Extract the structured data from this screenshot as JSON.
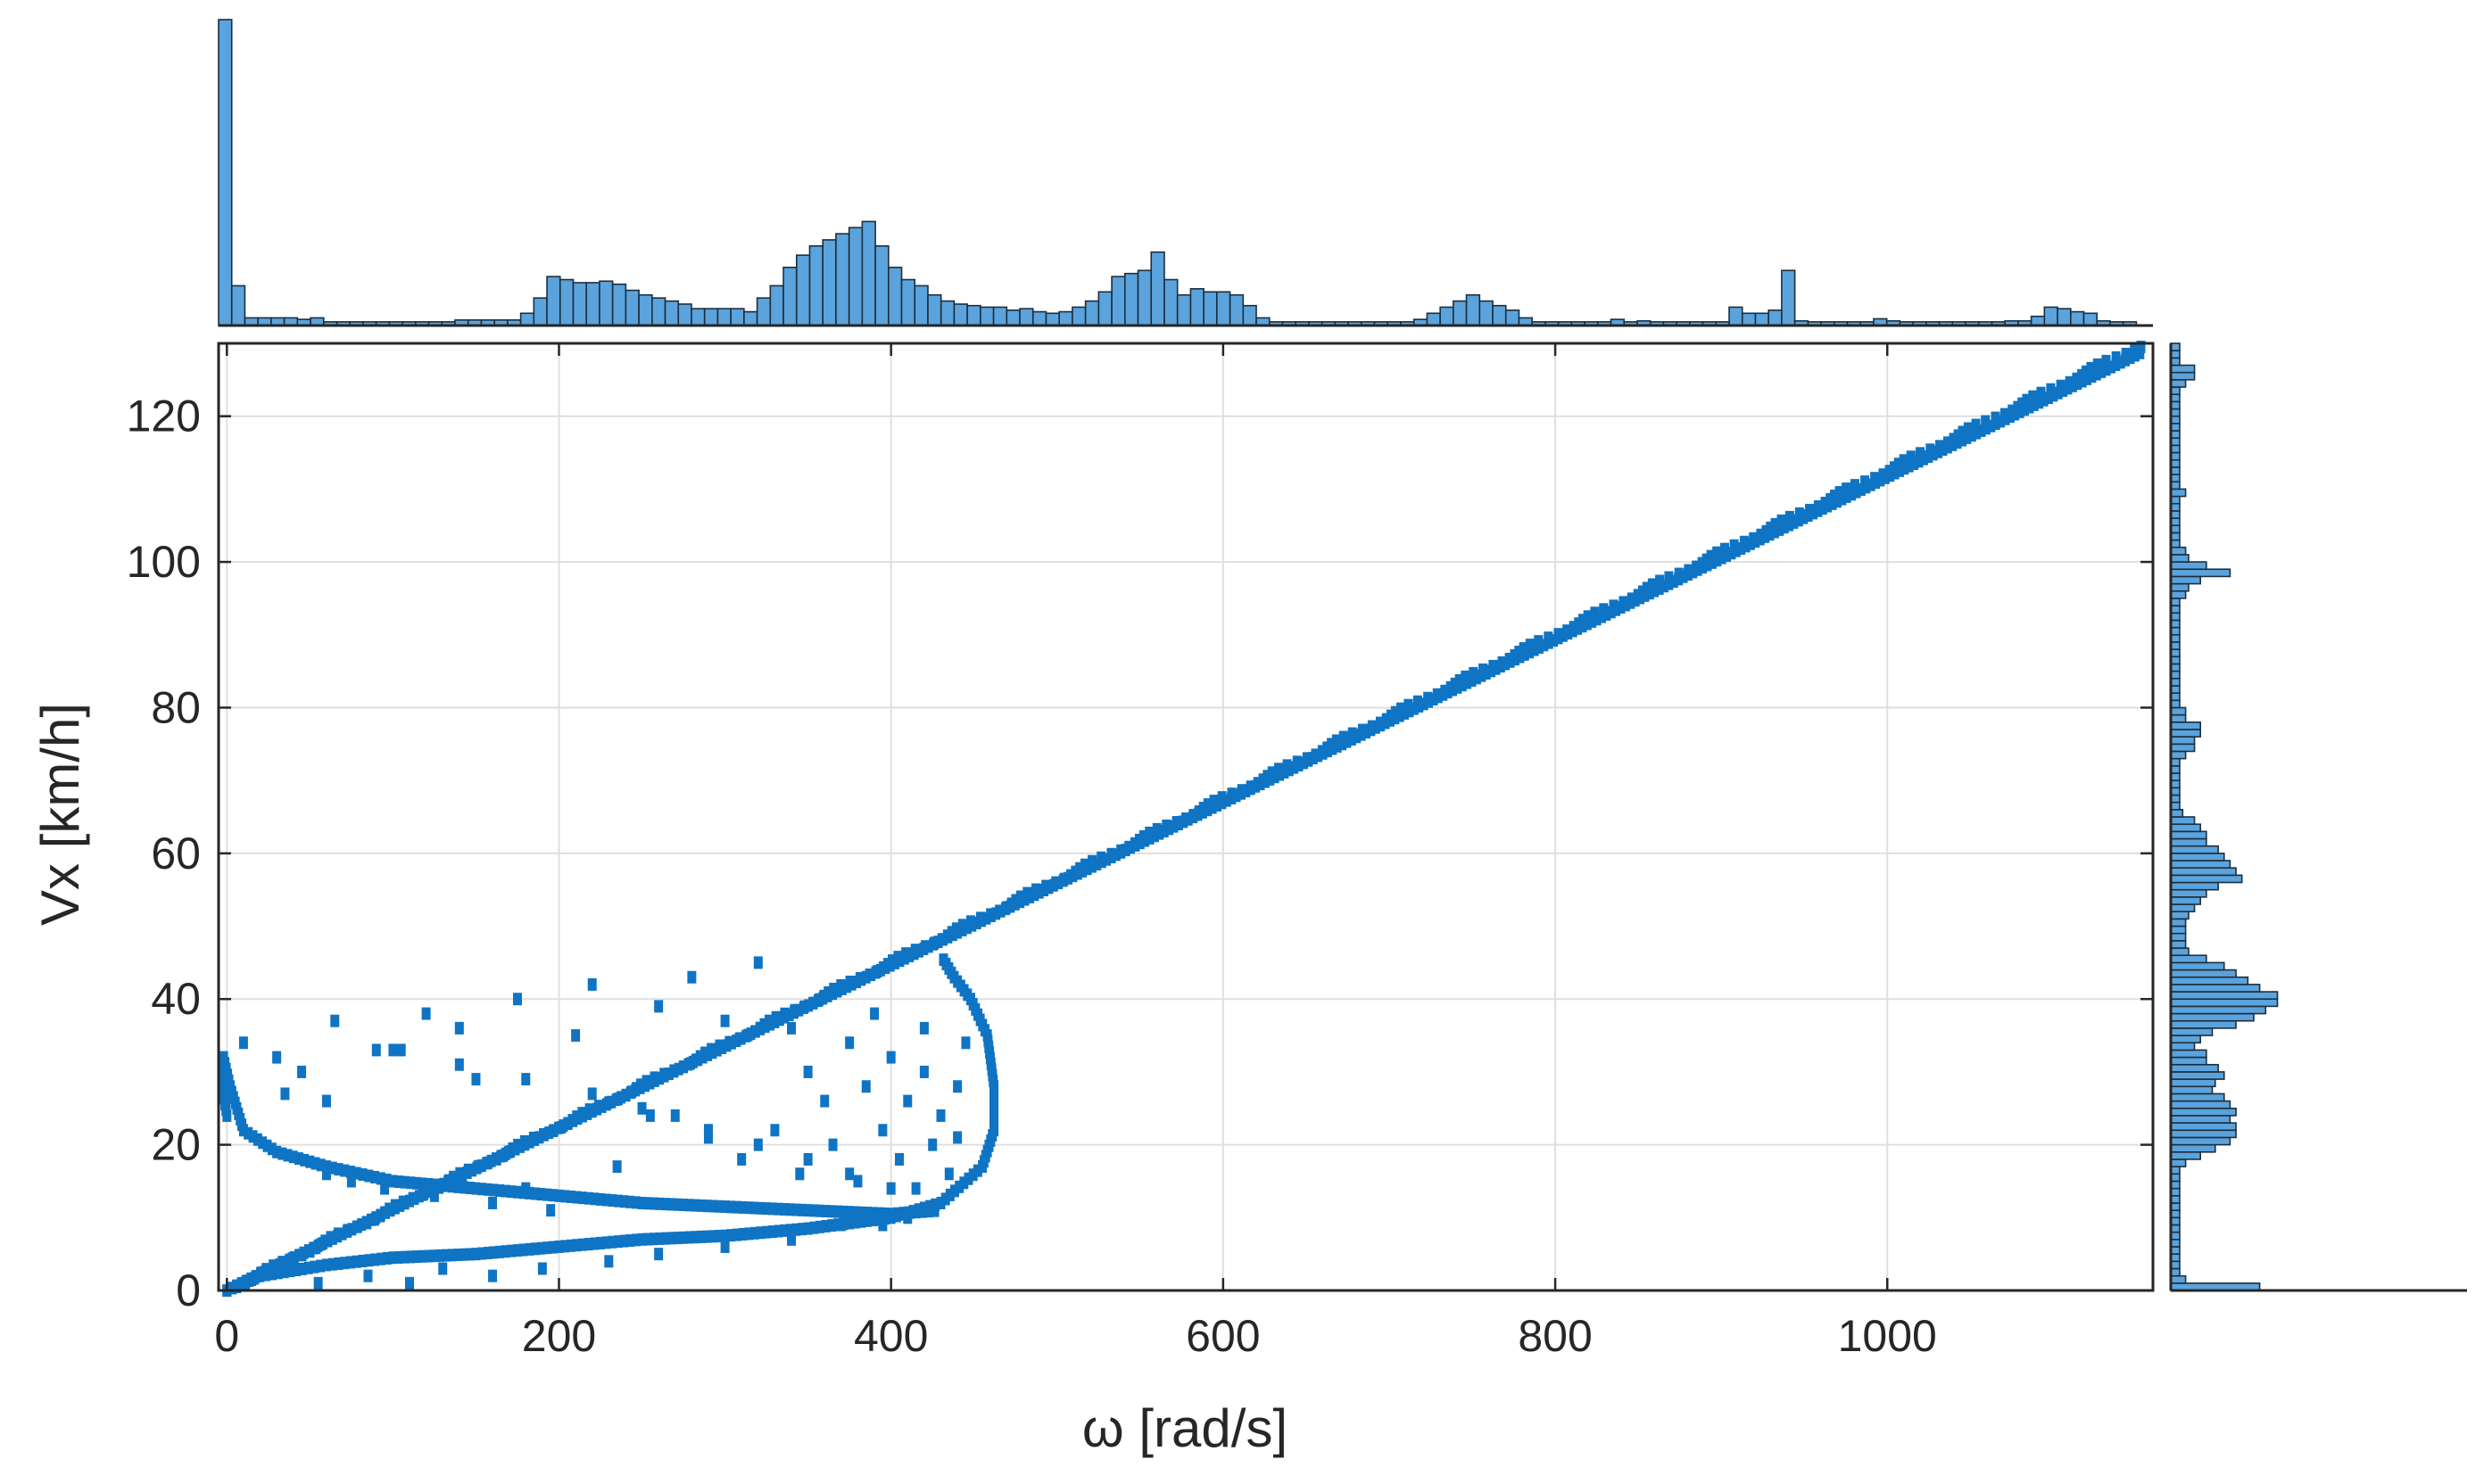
{
  "chart_data": {
    "type": "scatter",
    "title": "",
    "xlabel": "ω [rad/s]",
    "ylabel": "Vx [km/h]",
    "xlim": [
      -5,
      1160
    ],
    "ylim": [
      0,
      130
    ],
    "xticks": [
      "0",
      "200",
      "400",
      "600",
      "800",
      "1000"
    ],
    "yticks": [
      "0",
      "20",
      "40",
      "60",
      "80",
      "100",
      "120"
    ],
    "grid": true,
    "color": "#0f74c4",
    "histogram_color": "#5ba3dc",
    "main_line": {
      "x": [
        0,
        1155
      ],
      "y": [
        0,
        129
      ]
    },
    "upper_band": {
      "x": [
        0,
        1155
      ],
      "y": [
        0,
        130
      ]
    },
    "loop_right": {
      "x": [
        0,
        20,
        60,
        100,
        150,
        200,
        250,
        300,
        350,
        400,
        430,
        455,
        462,
        462,
        458,
        448,
        438,
        430
      ],
      "y": [
        0,
        2,
        3.5,
        4.5,
        5,
        6,
        7,
        7.5,
        8.5,
        10,
        12,
        17,
        22,
        28,
        35,
        40,
        43,
        46
      ]
    },
    "loop_left": {
      "x": [
        0,
        -3,
        -2,
        2,
        10,
        30,
        60,
        100,
        150,
        200,
        250,
        300,
        350,
        400,
        430
      ],
      "y": [
        24,
        28,
        32,
        28,
        22,
        19,
        17,
        15,
        14,
        13,
        12,
        11.5,
        11,
        10.5,
        11
      ]
    },
    "scatter_points": {
      "x": [
        10,
        30,
        45,
        60,
        65,
        75,
        90,
        95,
        105,
        120,
        125,
        140,
        150,
        160,
        175,
        180,
        195,
        210,
        220,
        235,
        250,
        260,
        270,
        280,
        290,
        300,
        310,
        320,
        330,
        340,
        345,
        350,
        360,
        365,
        375,
        380,
        385,
        390,
        395,
        400,
        405,
        410,
        415,
        420,
        425,
        430,
        435,
        440,
        445,
        35,
        55,
        85,
        110,
        130,
        160,
        190,
        230,
        260,
        300,
        340,
        370,
        395,
        410,
        60,
        100,
        140,
        180,
        220,
        255,
        290,
        320,
        350,
        375,
        400,
        420,
        440
      ],
      "y": [
        34,
        32,
        30,
        16,
        37,
        15,
        33,
        14,
        33,
        38,
        13,
        36,
        29,
        12,
        40,
        14,
        11,
        35,
        42,
        17,
        25,
        39,
        24,
        43,
        21,
        37,
        18,
        45,
        22,
        36,
        16,
        30,
        26,
        20,
        34,
        15,
        28,
        38,
        22,
        32,
        18,
        26,
        14,
        30,
        20,
        24,
        16,
        28,
        34,
        27,
        1,
        2,
        1,
        3,
        2,
        3,
        4,
        5,
        6,
        7,
        9,
        9,
        10,
        26,
        33,
        31,
        29,
        27,
        24,
        22,
        20,
        18,
        16,
        14,
        36,
        21
      ]
    },
    "histogram_x": {
      "bins": [
        -5,
        1150
      ],
      "counts": [
        1000,
        130,
        25,
        25,
        25,
        25,
        20,
        25,
        12,
        12,
        12,
        12,
        12,
        12,
        12,
        12,
        12,
        12,
        18,
        18,
        18,
        18,
        18,
        40,
        90,
        160,
        150,
        140,
        140,
        145,
        135,
        115,
        100,
        90,
        80,
        70,
        55,
        55,
        55,
        55,
        45,
        90,
        130,
        190,
        230,
        260,
        280,
        300,
        320,
        340,
        260,
        190,
        150,
        130,
        100,
        80,
        70,
        65,
        60,
        60,
        50,
        55,
        45,
        40,
        45,
        60,
        80,
        110,
        160,
        170,
        180,
        240,
        150,
        100,
        120,
        110,
        110,
        100,
        65,
        25,
        12,
        12,
        12,
        12,
        12,
        12,
        12,
        12,
        12,
        12,
        12,
        20,
        40,
        60,
        80,
        100,
        80,
        65,
        50,
        25,
        12,
        12,
        12,
        12,
        12,
        12,
        20,
        12,
        15,
        12,
        12,
        12,
        12,
        12,
        12,
        60,
        40,
        40,
        50,
        180,
        15,
        12,
        12,
        12,
        12,
        12,
        22,
        15,
        12,
        12,
        12,
        12,
        12,
        12,
        12,
        12,
        15,
        15,
        30,
        60,
        55,
        45,
        40,
        15,
        12,
        12
      ]
    },
    "histogram_y": {
      "bins": [
        0,
        130
      ],
      "counts": [
        30,
        5,
        3,
        3,
        3,
        3,
        3,
        3,
        3,
        3,
        3,
        3,
        3,
        3,
        3,
        3,
        3,
        5,
        10,
        15,
        20,
        22,
        22,
        20,
        22,
        20,
        18,
        14,
        15,
        18,
        16,
        12,
        12,
        8,
        10,
        14,
        22,
        28,
        32,
        36,
        36,
        30,
        26,
        22,
        18,
        12,
        6,
        5,
        5,
        5,
        5,
        6,
        8,
        10,
        12,
        16,
        24,
        22,
        20,
        18,
        16,
        12,
        12,
        10,
        8,
        4,
        3,
        3,
        3,
        3,
        3,
        3,
        3,
        5,
        8,
        8,
        10,
        10,
        5,
        5,
        3,
        3,
        3,
        3,
        3,
        3,
        3,
        3,
        3,
        3,
        3,
        3,
        3,
        3,
        3,
        5,
        6,
        10,
        20,
        12,
        6,
        5,
        3,
        3,
        3,
        3,
        3,
        3,
        3,
        5,
        3,
        3,
        3,
        3,
        3,
        3,
        3,
        3,
        3,
        3,
        3,
        3,
        3,
        3,
        5,
        8,
        8,
        3,
        3,
        3
      ]
    }
  }
}
